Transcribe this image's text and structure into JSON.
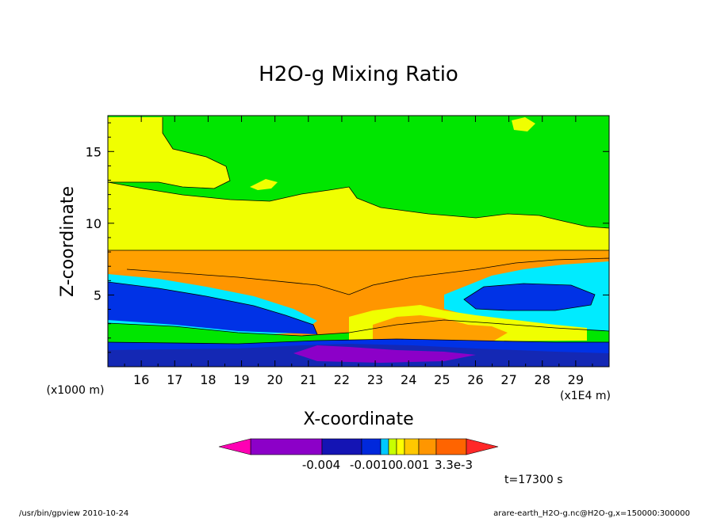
{
  "chart_data": {
    "type": "contour",
    "title": "H2O-g Mixing Ratio",
    "xlabel": "X-coordinate",
    "ylabel": "Z-coordinate",
    "y_unit_label": "(x1000 m)",
    "x_unit_label": "(x1E4 m)",
    "xlim": [
      15.0,
      30.0
    ],
    "ylim": [
      0.0,
      17.5
    ],
    "x_ticks": [
      "16",
      "17",
      "18",
      "19",
      "20",
      "21",
      "22",
      "23",
      "24",
      "25",
      "26",
      "27",
      "28",
      "29"
    ],
    "y_ticks": [
      "5",
      "10",
      "15"
    ],
    "levels": [
      -0.006,
      -0.005,
      -0.004,
      -0.003,
      -0.002,
      -0.001,
      -0.0005,
      0.0,
      0.0005,
      0.001,
      0.002,
      0.0033
    ],
    "colors": [
      "#8c00c8",
      "#1414b4",
      "#0028dc",
      "#00c8ff",
      "#c8ff00",
      "#ffff00",
      "#ffc800",
      "#ff9600",
      "#ff6400"
    ],
    "colorbar": {
      "low_color": "#ff00b4",
      "high_color": "#ff2828",
      "labels": [
        "-0.004",
        "-0.0010",
        "0.001",
        "3.3e-3"
      ]
    },
    "band_colors": {
      "green": "#00e600",
      "yellow": "#f0ff00",
      "orange": "#ffa000",
      "cyan": "#00ebff",
      "blue": "#0032e6",
      "darkblue": "#1428b4",
      "purple": "#8c00c8"
    },
    "time_label": "t=17300 s"
  },
  "footer": {
    "left": "/usr/bin/gpview   2010-10-24",
    "right": "arare-earth_H2O-g.nc@H2O-g,x=150000:300000"
  }
}
